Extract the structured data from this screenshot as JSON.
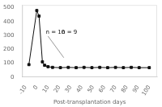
{
  "chart_data": {
    "type": "line",
    "xlabel": "Post-transplantation days",
    "xlim": [
      -13,
      107
    ],
    "xticks": [
      -10,
      0,
      10,
      20,
      30,
      40,
      50,
      60,
      70,
      80,
      90,
      100
    ],
    "ylim": [
      0,
      520
    ],
    "yticks": [
      0,
      100,
      200,
      300,
      400,
      500
    ],
    "grid": false,
    "series": [
      {
        "color": "#111111",
        "marker": "square",
        "x": [
          -7,
          0,
          2,
          5,
          7,
          10,
          14,
          21,
          28,
          35,
          42,
          49,
          56,
          63,
          70,
          77,
          84,
          91,
          100
        ],
        "values": [
          90,
          480,
          440,
          110,
          85,
          75,
          70,
          68,
          70,
          68,
          70,
          68,
          70,
          68,
          70,
          68,
          70,
          68,
          68
        ]
      },
      {
        "color": "#999999",
        "marker": "none",
        "x": [
          10,
          24
        ],
        "values": [
          295,
          140
        ]
      }
    ],
    "annotations": [
      {
        "text": "n = 10",
        "x": 8,
        "y": 300
      },
      {
        "text": "n = 9",
        "x": 22,
        "y": 300
      }
    ]
  }
}
